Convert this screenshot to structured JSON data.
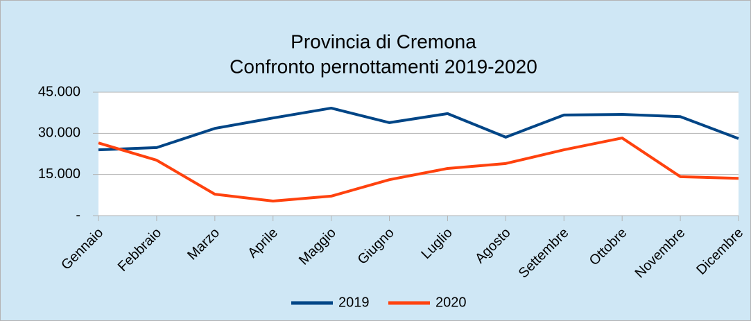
{
  "chart_data": {
    "type": "line",
    "title": "Provincia di Cremona",
    "subtitle": "Confronto pernottamenti 2019-2020",
    "categories": [
      "Gennaio",
      "Febbraio",
      "Marzo",
      "Aprile",
      "Maggio",
      "Giugno",
      "Luglio",
      "Agosto",
      "Settembre",
      "Ottobre",
      "Novembre",
      "Dicembre"
    ],
    "series": [
      {
        "name": "2019",
        "color": "#004586",
        "values": [
          24000,
          24800,
          31800,
          35600,
          39200,
          33900,
          37200,
          28600,
          36700,
          36900,
          36100,
          28100
        ]
      },
      {
        "name": "2020",
        "color": "#ff420e",
        "values": [
          26500,
          20200,
          7800,
          5300,
          7100,
          13100,
          17200,
          19000,
          24000,
          28300,
          14200,
          13600
        ]
      }
    ],
    "ylim": [
      0,
      45000
    ],
    "yticks": [
      {
        "value": 0,
        "label": "-"
      },
      {
        "value": 15000,
        "label": "15.000"
      },
      {
        "value": 30000,
        "label": "30.000"
      },
      {
        "value": 45000,
        "label": "45.000"
      }
    ],
    "grid": true,
    "legend": "bottom"
  }
}
